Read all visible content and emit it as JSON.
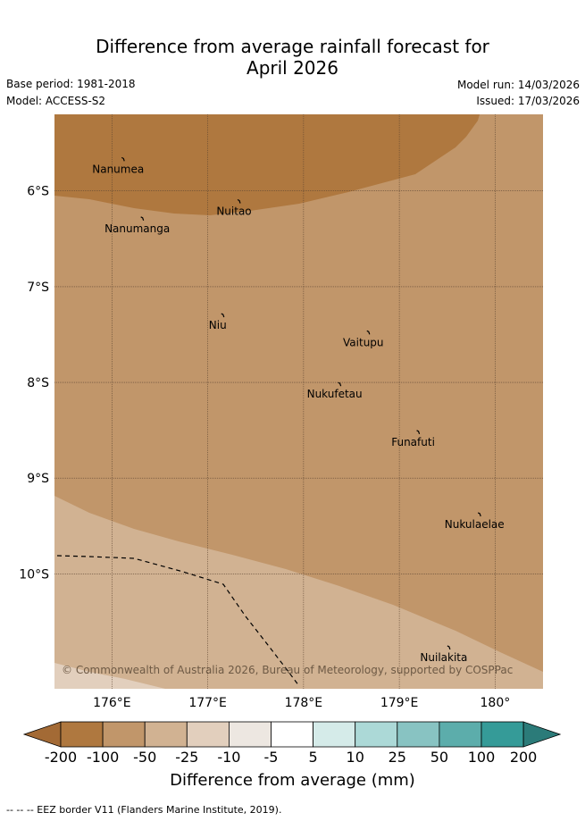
{
  "title": {
    "line1": "Difference from average rainfall forecast for",
    "line2": "April 2026"
  },
  "meta": {
    "base_period": "Base period: 1981-2018",
    "model": "Model: ACCESS-S2",
    "model_run": "Model run: 14/03/2026",
    "issued": "Issued: 17/03/2026"
  },
  "map": {
    "lon_range": [
      175.4,
      180.5
    ],
    "lat_range": [
      -11.2,
      -5.2
    ],
    "lon_ticks": [
      {
        "value": 176,
        "label": "176°E"
      },
      {
        "value": 177,
        "label": "177°E"
      },
      {
        "value": 178,
        "label": "178°E"
      },
      {
        "value": 179,
        "label": "179°E"
      },
      {
        "value": 180,
        "label": "180°"
      }
    ],
    "lat_ticks": [
      {
        "value": -6,
        "label": "6°S"
      },
      {
        "value": -7,
        "label": "7°S"
      },
      {
        "value": -8,
        "label": "8°S"
      },
      {
        "value": -9,
        "label": "9°S"
      },
      {
        "value": -10,
        "label": "10°S"
      }
    ],
    "islands": [
      {
        "name": "Nanumea",
        "lon": 176.12,
        "lat": -5.67
      },
      {
        "name": "Nuitao",
        "lon": 177.33,
        "lat": -6.11
      },
      {
        "name": "Nanumanga",
        "lon": 176.32,
        "lat": -6.29
      },
      {
        "name": "Niu",
        "lon": 177.16,
        "lat": -7.3
      },
      {
        "name": "Vaitupu",
        "lon": 178.68,
        "lat": -7.48
      },
      {
        "name": "Nukufetau",
        "lon": 178.38,
        "lat": -8.02
      },
      {
        "name": "Funafuti",
        "lon": 179.2,
        "lat": -8.52
      },
      {
        "name": "Nukulaelae",
        "lon": 179.84,
        "lat": -9.38
      },
      {
        "name": "Nuilakita",
        "lon": 179.52,
        "lat": -10.77
      }
    ],
    "copyright": "© Commonwealth of Australia 2026, Bureau of Meteorology, supported by COSPPac"
  },
  "legend": {
    "colors": [
      "#a36a35",
      "#af783f",
      "#c1966a",
      "#d1b292",
      "#e2cfbd",
      "#ede7e1",
      "#ffffff",
      "#d5ebe9",
      "#acd9d7",
      "#88c3c2",
      "#5cadab",
      "#359b98",
      "#2b7b79"
    ],
    "labels": [
      "-200",
      "-100",
      "-50",
      "-25",
      "-10",
      "-5",
      "5",
      "10",
      "25",
      "50",
      "100",
      "200"
    ],
    "title": "Difference from average (mm)"
  },
  "footnote": "-- -- -- EEZ border V11 (Flanders Marine Institute, 2019)."
}
